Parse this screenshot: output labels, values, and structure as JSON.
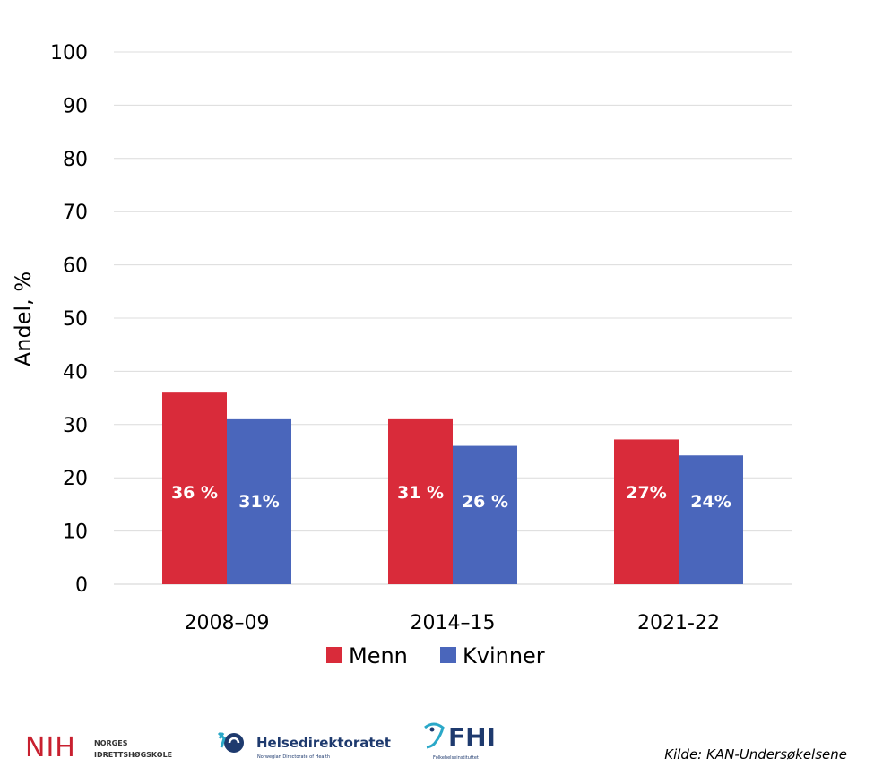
{
  "chart_data": {
    "type": "bar",
    "ylabel": "Andel, %",
    "ylim": [
      0,
      100
    ],
    "yticks": [
      0,
      10,
      20,
      30,
      40,
      50,
      60,
      70,
      80,
      90,
      100
    ],
    "grid": true,
    "legend_position": "bottom",
    "categories": [
      "2008–09",
      "2014–15",
      "2021-22"
    ],
    "series": [
      {
        "name": "Menn",
        "color": "#d92b3a",
        "values": [
          36,
          31,
          27.2
        ],
        "labels": [
          "36 %",
          "31 %",
          "27%"
        ]
      },
      {
        "name": "Kvinner",
        "color": "#4a66bb",
        "values": [
          31,
          26,
          24.2
        ],
        "labels": [
          "31%",
          "26 %",
          "24%"
        ]
      }
    ]
  },
  "logos": {
    "nih": {
      "mark": "NIH",
      "line1": "NORGES",
      "line2": "IDRETTSHØGSKOLE"
    },
    "hdir": {
      "name": "Helsedirektoratet",
      "sub": "Norwegian Directorate of Health",
      "icon": "hdir-logo-icon"
    },
    "fhi": {
      "name": "FHI",
      "sub": "Folkehelseinstituttet",
      "icon": "fhi-logo-icon"
    }
  },
  "source": "Kilde: KAN-Undersøkelsene"
}
